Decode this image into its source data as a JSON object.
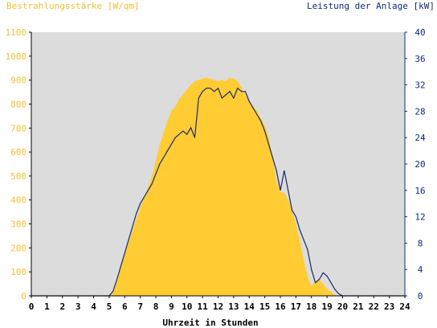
{
  "chart_data": {
    "type": "area",
    "left_axis_title": "Bestrahlungsstärke [W/qm]",
    "right_axis_title": "Leistung der Anlage [kW]",
    "xlabel": "Uhrzeit in Stunden",
    "xlim": [
      0,
      24
    ],
    "x_ticks": [
      "0",
      "1",
      "2",
      "3",
      "4",
      "5",
      "6",
      "7",
      "8",
      "9",
      "10",
      "11",
      "12",
      "13",
      "14",
      "15",
      "16",
      "17",
      "18",
      "19",
      "20",
      "21",
      "22",
      "23",
      "24"
    ],
    "ylim_left": [
      0,
      1100
    ],
    "y_ticks_left": [
      "0",
      "100",
      "200",
      "300",
      "400",
      "500",
      "600",
      "700",
      "800",
      "900",
      "1000",
      "1100"
    ],
    "ylim_right": [
      0,
      40
    ],
    "y_ticks_right": [
      "0",
      "4",
      "8",
      "12",
      "16",
      "20",
      "24",
      "28",
      "32",
      "36",
      "40"
    ],
    "grid": false,
    "colors": {
      "left_axis": "#f0c030",
      "right_axis": "#102a7a",
      "irradiance_fill": "#ffcc33",
      "power_line": "#1a2a6c",
      "plot_background": "#dcdcdc"
    },
    "series": [
      {
        "axis": "left",
        "style": "area",
        "x": [
          0,
          5.0,
          5.25,
          5.5,
          5.75,
          6.0,
          6.25,
          6.5,
          6.75,
          7.0,
          7.25,
          7.5,
          7.75,
          8.0,
          8.25,
          8.5,
          8.75,
          9.0,
          9.25,
          9.5,
          9.75,
          10.0,
          10.25,
          10.5,
          10.75,
          11.0,
          11.25,
          11.5,
          11.75,
          12.0,
          12.25,
          12.5,
          12.75,
          13.0,
          13.25,
          13.5,
          13.75,
          14.0,
          14.25,
          14.5,
          14.75,
          15.0,
          15.25,
          15.5,
          15.75,
          16.0,
          16.25,
          16.5,
          16.75,
          17.0,
          17.25,
          17.5,
          17.75,
          18.0,
          18.25,
          18.5,
          18.75,
          19.0,
          19.25,
          19.5,
          19.75,
          20.0,
          20.25,
          24
        ],
        "values": [
          0,
          0,
          20,
          60,
          120,
          175,
          225,
          270,
          320,
          370,
          410,
          450,
          500,
          560,
          630,
          680,
          730,
          770,
          790,
          820,
          840,
          860,
          880,
          895,
          900,
          905,
          910,
          905,
          900,
          895,
          900,
          895,
          910,
          905,
          895,
          870,
          840,
          810,
          790,
          770,
          740,
          710,
          660,
          580,
          480,
          430,
          430,
          400,
          360,
          300,
          230,
          150,
          80,
          40,
          60,
          70,
          50,
          30,
          15,
          5,
          0,
          0,
          0,
          0
        ]
      },
      {
        "axis": "right",
        "style": "line",
        "x": [
          0,
          5.0,
          5.25,
          5.5,
          5.75,
          6.0,
          6.25,
          6.5,
          6.75,
          7.0,
          7.25,
          7.5,
          7.75,
          8.0,
          8.25,
          8.5,
          8.75,
          9.0,
          9.25,
          9.5,
          9.75,
          10.0,
          10.25,
          10.5,
          10.75,
          11.0,
          11.25,
          11.5,
          11.75,
          12.0,
          12.25,
          12.5,
          12.75,
          13.0,
          13.25,
          13.5,
          13.75,
          14.0,
          14.25,
          14.5,
          14.75,
          15.0,
          15.25,
          15.5,
          15.75,
          16.0,
          16.25,
          16.5,
          16.75,
          17.0,
          17.25,
          17.5,
          17.75,
          18.0,
          18.25,
          18.5,
          18.75,
          19.0,
          19.25,
          19.5,
          19.75,
          20.0,
          20.25,
          24
        ],
        "values": [
          0,
          0,
          0.7,
          2.5,
          4.5,
          6.5,
          8.5,
          10.5,
          12.5,
          14.0,
          15.0,
          16.0,
          17.0,
          18.5,
          20.0,
          21.0,
          22.0,
          23.0,
          24.0,
          24.5,
          25.0,
          24.5,
          25.5,
          24.0,
          30.0,
          31.0,
          31.5,
          31.5,
          31.0,
          31.5,
          30.0,
          30.5,
          31.0,
          30.0,
          31.5,
          31.0,
          31.0,
          29.5,
          28.5,
          27.5,
          26.5,
          25.0,
          23.0,
          21.0,
          19.0,
          16.0,
          19.0,
          16.0,
          13.0,
          12.0,
          10.0,
          8.5,
          7.0,
          4.0,
          2.0,
          2.5,
          3.5,
          3.0,
          2.0,
          1.0,
          0.3,
          0,
          0,
          0
        ]
      }
    ]
  }
}
